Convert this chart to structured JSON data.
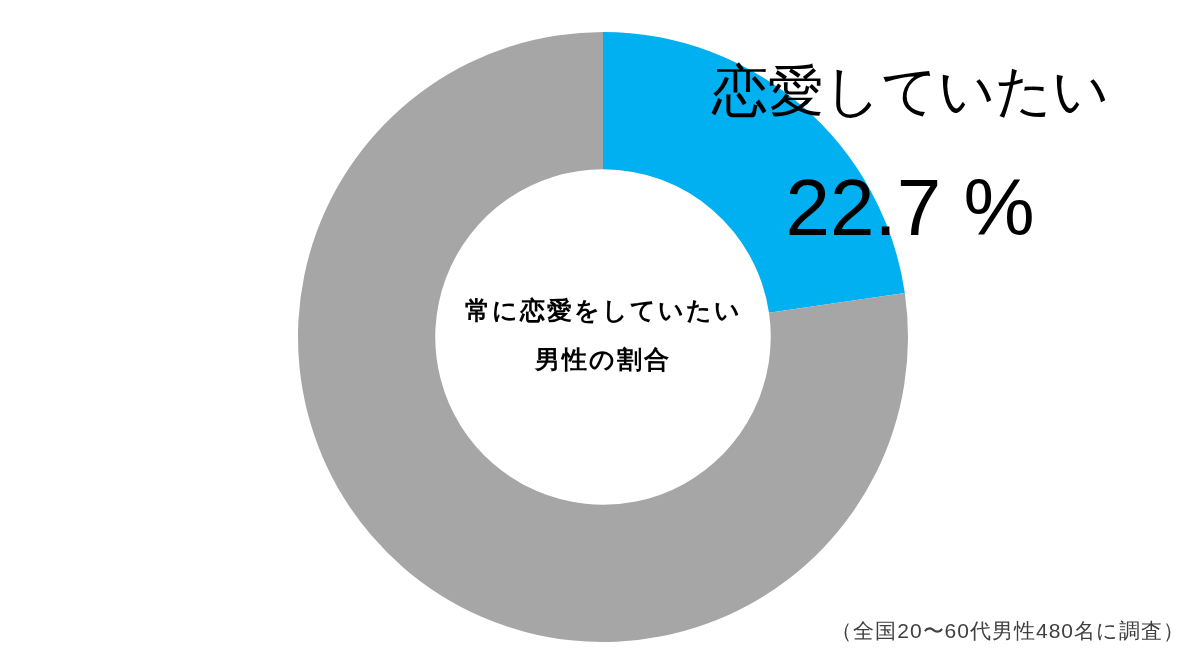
{
  "chart_data": {
    "type": "donut",
    "title": "常に恋愛をしていたい男性の割合",
    "categories": [
      "恋愛していたい",
      null
    ],
    "values": [
      22.7,
      77.3
    ],
    "colors": [
      "#00b0f0",
      "#a6a6a6"
    ],
    "value_labels": [
      "22.7 %",
      null
    ],
    "annotations": [
      "（全国20〜60代男性480名に調査）"
    ]
  }
}
